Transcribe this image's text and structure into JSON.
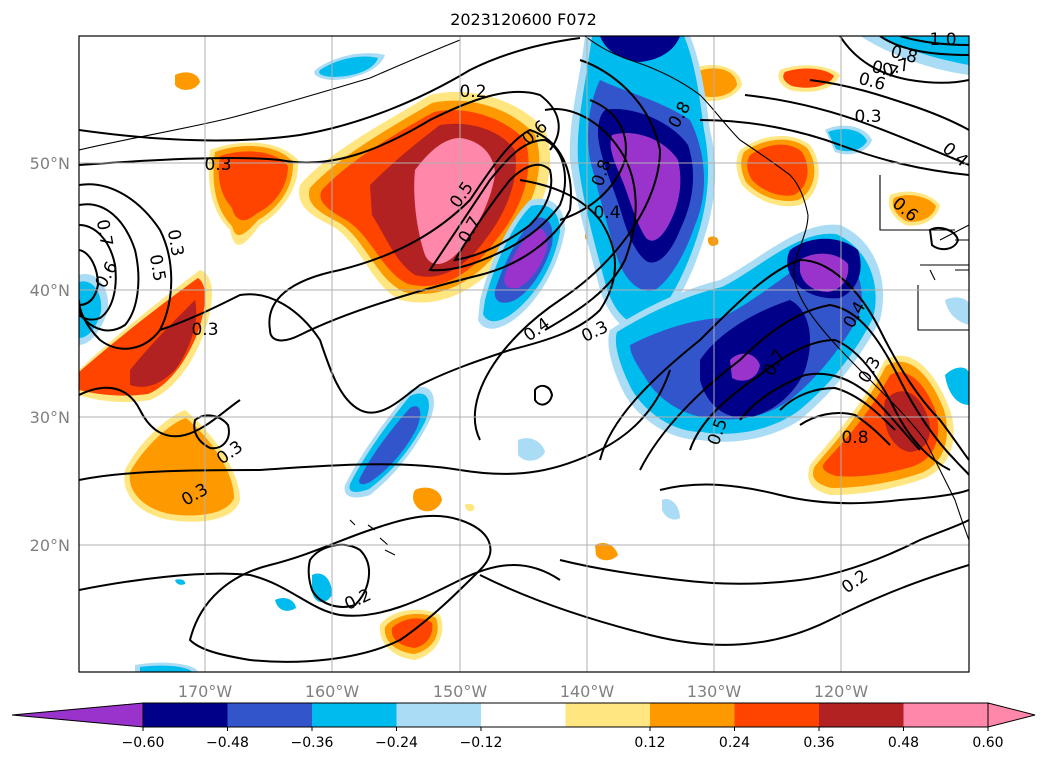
{
  "title": "2023120600 F072",
  "map": {
    "projection": "PlateCarree",
    "lon_range": [
      -180,
      -110
    ],
    "lat_range": [
      10,
      60
    ],
    "gridlines": true,
    "lat_ticks": [
      "50°N",
      "40°N",
      "30°N",
      "20°N"
    ],
    "lon_ticks": [
      "170°W",
      "160°W",
      "150°W",
      "140°W",
      "130°W",
      "120°W"
    ],
    "contour_labels": [
      "0.2",
      "0.3",
      "0.5",
      "0.6",
      "0.7",
      "0.8",
      "0.4",
      "0.3",
      "0.5",
      "0.7",
      "0.6",
      "0.4",
      "0.3",
      "0.3",
      "0.3",
      "0.3",
      "0.2",
      "0.8",
      "0.4",
      "0.3",
      "0.5",
      "0.7",
      "0.8",
      "0.2",
      "0.3",
      "0.4",
      "0.6",
      "0.7",
      "1.0",
      "0.8",
      "0.7",
      "0.6"
    ]
  },
  "colorbar": {
    "extend": "both",
    "tick_labels": [
      "−0.60",
      "−0.48",
      "−0.36",
      "−0.24",
      "−0.12",
      "0.12",
      "0.24",
      "0.36",
      "0.48",
      "0.60"
    ],
    "colors": [
      "#9933cc",
      "#000088",
      "#3355cc",
      "#00bbee",
      "#aaddf5",
      "#ffffff",
      "#ffe680",
      "#ff9900",
      "#ff4400",
      "#b22222",
      "#ff88aa",
      "#ff88aa"
    ]
  }
}
